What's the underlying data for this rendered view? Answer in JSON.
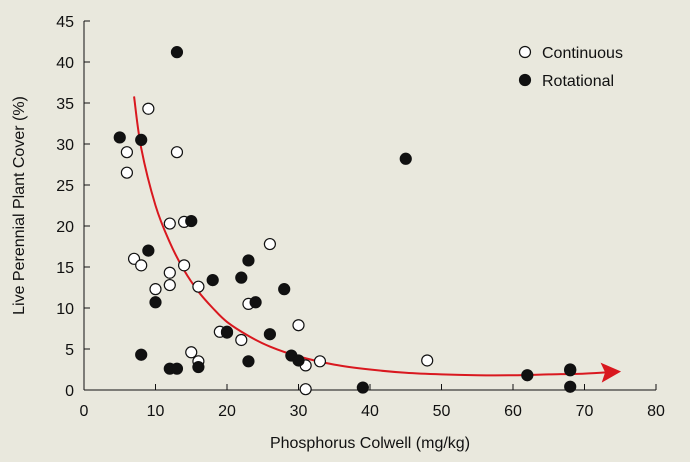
{
  "chart_data": {
    "type": "scatter",
    "xlabel": "Phosphorus Colwell (mg/kg)",
    "ylabel": "Live Perennial Plant Cover (%)",
    "xlim": [
      0,
      80
    ],
    "ylim": [
      0,
      45
    ],
    "xticks": [
      "0",
      "10",
      "20",
      "30",
      "40",
      "50",
      "60",
      "70",
      "80"
    ],
    "yticks": [
      "0",
      "5",
      "10",
      "15",
      "20",
      "25",
      "30",
      "35",
      "40",
      "45"
    ],
    "grid": false,
    "legend_position": "top-right",
    "series": [
      {
        "name": "Continuous",
        "marker": "open-circle",
        "points": [
          [
            6,
            29
          ],
          [
            6,
            26.5
          ],
          [
            9,
            34.3
          ],
          [
            13,
            29
          ],
          [
            7,
            16
          ],
          [
            8,
            15.2
          ],
          [
            10,
            12.3
          ],
          [
            12,
            14.3
          ],
          [
            12,
            12.8
          ],
          [
            12,
            20.3
          ],
          [
            14,
            20.5
          ],
          [
            14,
            15.2
          ],
          [
            16,
            12.6
          ],
          [
            15,
            4.6
          ],
          [
            16,
            3.5
          ],
          [
            19,
            7.1
          ],
          [
            20,
            7
          ],
          [
            22,
            6.1
          ],
          [
            23,
            10.5
          ],
          [
            26,
            17.8
          ],
          [
            30,
            7.9
          ],
          [
            31,
            3
          ],
          [
            31,
            0.1
          ],
          [
            33,
            3.5
          ],
          [
            48,
            3.6
          ],
          [
            68,
            2.5
          ]
        ]
      },
      {
        "name": "Rotational",
        "marker": "filled-circle",
        "points": [
          [
            5,
            30.8
          ],
          [
            8,
            30.5
          ],
          [
            13,
            41.2
          ],
          [
            9,
            17
          ],
          [
            10,
            10.7
          ],
          [
            15,
            20.6
          ],
          [
            8,
            4.3
          ],
          [
            12,
            2.6
          ],
          [
            13,
            2.6
          ],
          [
            16,
            2.8
          ],
          [
            18,
            13.4
          ],
          [
            22,
            13.7
          ],
          [
            23,
            15.8
          ],
          [
            24,
            10.7
          ],
          [
            20,
            7.1
          ],
          [
            23,
            3.5
          ],
          [
            26,
            6.8
          ],
          [
            28,
            12.3
          ],
          [
            29,
            4.2
          ],
          [
            30,
            3.6
          ],
          [
            39,
            0.3
          ],
          [
            45,
            28.2
          ],
          [
            62,
            1.8
          ],
          [
            68,
            0.4
          ],
          [
            68,
            2.4
          ]
        ]
      }
    ],
    "trend_line": {
      "color": "#d9181f",
      "points": [
        [
          7,
          35.8
        ],
        [
          8,
          29.5
        ],
        [
          10,
          22.5
        ],
        [
          12,
          18
        ],
        [
          14,
          14.6
        ],
        [
          16,
          12
        ],
        [
          18,
          10
        ],
        [
          20,
          8.3
        ],
        [
          23,
          6.6
        ],
        [
          26,
          5.3
        ],
        [
          30,
          4.1
        ],
        [
          35,
          3.1
        ],
        [
          40,
          2.5
        ],
        [
          45,
          2.1
        ],
        [
          50,
          1.9
        ],
        [
          55,
          1.8
        ],
        [
          60,
          1.8
        ],
        [
          65,
          1.9
        ],
        [
          70,
          2
        ],
        [
          74,
          2.2
        ]
      ]
    },
    "colors": {
      "background": "#e9e8dd",
      "marker_stroke": "#111111",
      "marker_fill_filled": "#111111",
      "marker_fill_open": "#ffffff"
    }
  }
}
